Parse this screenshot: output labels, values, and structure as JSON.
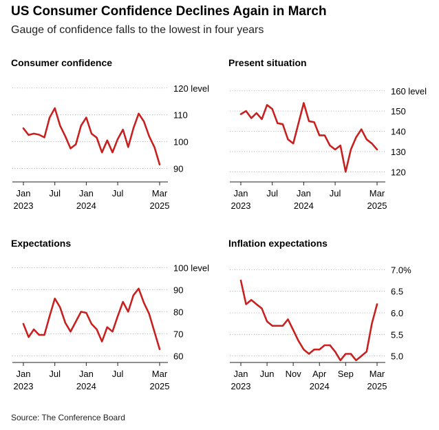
{
  "header": {
    "title": "US Consumer Confidence Declines Again in March",
    "subtitle": "Gauge of confidence falls to the lowest in four years"
  },
  "footer": {
    "source": "Source: The Conference Board"
  },
  "colors": {
    "line": "#c8201f",
    "axis": "#222222",
    "grid": "#9a9a9a"
  },
  "chart_data": [
    {
      "type": "line",
      "title": "Consumer confidence",
      "unit_label": "level",
      "x": [
        "2023-01",
        "2023-02",
        "2023-03",
        "2023-04",
        "2023-05",
        "2023-06",
        "2023-07",
        "2023-08",
        "2023-09",
        "2023-10",
        "2023-11",
        "2023-12",
        "2024-01",
        "2024-02",
        "2024-03",
        "2024-04",
        "2024-05",
        "2024-06",
        "2024-07",
        "2024-08",
        "2024-09",
        "2024-10",
        "2024-11",
        "2024-12",
        "2025-01",
        "2025-02",
        "2025-03"
      ],
      "series": [
        {
          "values": [
            105.0,
            102.5,
            103.0,
            102.6,
            101.6,
            109.0,
            112.5,
            106.0,
            102.0,
            97.5,
            99.0,
            106.0,
            109.0,
            103.0,
            101.5,
            96.0,
            100.5,
            96.0,
            101.0,
            104.5,
            98.0,
            105.0,
            110.5,
            107.5,
            102.0,
            98.0,
            91.5
          ]
        }
      ],
      "ylim": [
        85,
        122
      ],
      "yticks": [
        90,
        100,
        110,
        120
      ],
      "ytick_labels": [
        "90",
        "100",
        "110",
        "120"
      ],
      "xticks": [
        {
          "x": "2023-01",
          "line1": "Jan",
          "line2": "2023"
        },
        {
          "x": "2023-07",
          "line1": "Jul",
          "line2": ""
        },
        {
          "x": "2024-01",
          "line1": "Jan",
          "line2": "2024"
        },
        {
          "x": "2024-07",
          "line1": "Jul",
          "line2": ""
        },
        {
          "x": "2025-03",
          "line1": "Mar",
          "line2": "2025"
        }
      ],
      "grid": true
    },
    {
      "type": "line",
      "title": "Present situation",
      "unit_label": "level",
      "x": [
        "2023-01",
        "2023-02",
        "2023-03",
        "2023-04",
        "2023-05",
        "2023-06",
        "2023-07",
        "2023-08",
        "2023-09",
        "2023-10",
        "2023-11",
        "2023-12",
        "2024-01",
        "2024-02",
        "2024-03",
        "2024-04",
        "2024-05",
        "2024-06",
        "2024-07",
        "2024-08",
        "2024-09",
        "2024-10",
        "2024-11",
        "2024-12",
        "2025-01",
        "2025-02",
        "2025-03"
      ],
      "series": [
        {
          "values": [
            148.5,
            150.0,
            146.5,
            149.0,
            146.0,
            153.0,
            151.0,
            144.0,
            143.5,
            136.0,
            134.0,
            144.0,
            154.0,
            145.0,
            144.5,
            138.0,
            138.0,
            133.0,
            131.0,
            133.0,
            120.0,
            131.0,
            137.0,
            141.0,
            136.0,
            134.0,
            131.0
          ]
        }
      ],
      "ylim": [
        115,
        164
      ],
      "yticks": [
        120,
        130,
        140,
        150,
        160
      ],
      "ytick_labels": [
        "120",
        "130",
        "140",
        "150",
        "160"
      ],
      "xticks": [
        {
          "x": "2023-01",
          "line1": "Jan",
          "line2": "2023"
        },
        {
          "x": "2023-07",
          "line1": "Jul",
          "line2": ""
        },
        {
          "x": "2024-01",
          "line1": "Jan",
          "line2": "2024"
        },
        {
          "x": "2024-07",
          "line1": "Jul",
          "line2": ""
        },
        {
          "x": "2025-03",
          "line1": "Mar",
          "line2": "2025"
        }
      ],
      "grid": true
    },
    {
      "type": "line",
      "title": "Expectations",
      "unit_label": "level",
      "x": [
        "2023-01",
        "2023-02",
        "2023-03",
        "2023-04",
        "2023-05",
        "2023-06",
        "2023-07",
        "2023-08",
        "2023-09",
        "2023-10",
        "2023-11",
        "2023-12",
        "2024-01",
        "2024-02",
        "2024-03",
        "2024-04",
        "2024-05",
        "2024-06",
        "2024-07",
        "2024-08",
        "2024-09",
        "2024-10",
        "2024-11",
        "2024-12",
        "2025-01",
        "2025-02",
        "2025-03"
      ],
      "series": [
        {
          "values": [
            74.5,
            68.5,
            72.0,
            69.5,
            69.5,
            78.0,
            86.0,
            82.0,
            75.0,
            71.0,
            75.5,
            80.0,
            79.5,
            74.5,
            72.0,
            66.5,
            73.0,
            71.0,
            78.0,
            84.5,
            80.0,
            87.5,
            90.5,
            84.0,
            79.0,
            71.0,
            63.0
          ]
        }
      ],
      "ylim": [
        57,
        102
      ],
      "yticks": [
        60,
        70,
        80,
        90,
        100
      ],
      "ytick_labels": [
        "60",
        "70",
        "80",
        "90",
        "100"
      ],
      "xticks": [
        {
          "x": "2023-01",
          "line1": "Jan",
          "line2": "2023"
        },
        {
          "x": "2023-07",
          "line1": "Jul",
          "line2": ""
        },
        {
          "x": "2024-01",
          "line1": "Jan",
          "line2": "2024"
        },
        {
          "x": "2024-07",
          "line1": "Jul",
          "line2": ""
        },
        {
          "x": "2025-03",
          "line1": "Mar",
          "line2": "2025"
        }
      ],
      "grid": true
    },
    {
      "type": "line",
      "title": "Inflation expectations",
      "unit_label": "%",
      "x": [
        "2023-01",
        "2023-02",
        "2023-03",
        "2023-04",
        "2023-05",
        "2023-06",
        "2023-07",
        "2023-08",
        "2023-09",
        "2023-10",
        "2023-11",
        "2023-12",
        "2024-01",
        "2024-02",
        "2024-03",
        "2024-04",
        "2024-05",
        "2024-06",
        "2024-07",
        "2024-08",
        "2024-09",
        "2024-10",
        "2024-11",
        "2024-12",
        "2025-01",
        "2025-02",
        "2025-03"
      ],
      "series": [
        {
          "values": [
            6.75,
            6.2,
            6.3,
            6.2,
            6.1,
            5.8,
            5.7,
            5.7,
            5.7,
            5.85,
            5.6,
            5.35,
            5.15,
            5.05,
            5.15,
            5.15,
            5.25,
            5.25,
            5.1,
            4.9,
            5.05,
            5.05,
            4.9,
            5.0,
            5.1,
            5.75,
            6.2
          ]
        }
      ],
      "ylim": [
        4.85,
        7.15
      ],
      "yticks": [
        5.0,
        5.5,
        6.0,
        6.5,
        7.0
      ],
      "ytick_labels": [
        "5.0",
        "5.5",
        "6.0",
        "6.5",
        "7.0"
      ],
      "xticks": [
        {
          "x": "2023-01",
          "line1": "Jan",
          "line2": "2023"
        },
        {
          "x": "2023-06",
          "line1": "Jun",
          "line2": ""
        },
        {
          "x": "2023-11",
          "line1": "Nov",
          "line2": ""
        },
        {
          "x": "2024-04",
          "line1": "Apr",
          "line2": "2024"
        },
        {
          "x": "2024-09",
          "line1": "Sep",
          "line2": ""
        },
        {
          "x": "2025-03",
          "line1": "Mar",
          "line2": "2025"
        }
      ],
      "grid": true
    }
  ]
}
